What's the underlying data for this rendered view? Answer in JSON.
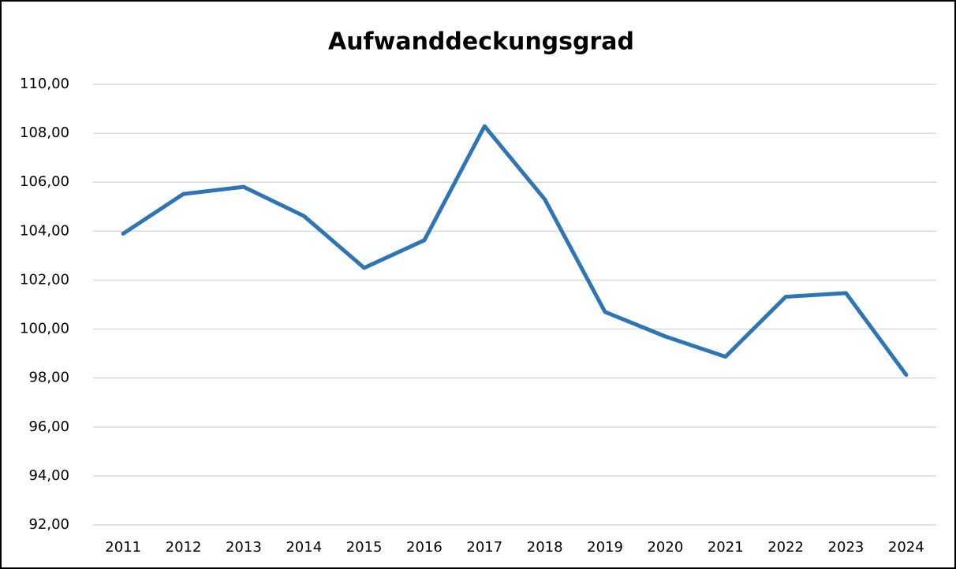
{
  "chart_data": {
    "type": "line",
    "title": "Aufwanddeckungsgrad",
    "categories": [
      "2011",
      "2012",
      "2013",
      "2014",
      "2015",
      "2016",
      "2017",
      "2018",
      "2019",
      "2020",
      "2021",
      "2022",
      "2023",
      "2024"
    ],
    "series": [
      {
        "color": "#2e75b6",
        "values": [
          103.9,
          105.52,
          105.81,
          104.62,
          102.5,
          103.63,
          108.29,
          105.3,
          100.7,
          99.7,
          98.87,
          101.32,
          101.47,
          98.13
        ]
      }
    ],
    "ylim": [
      92,
      110
    ],
    "yticks": [
      {
        "value": 92,
        "label": "92,00"
      },
      {
        "value": 94,
        "label": "94,00"
      },
      {
        "value": 96,
        "label": "96,00"
      },
      {
        "value": 98,
        "label": "98,00"
      },
      {
        "value": 100,
        "label": "100,00"
      },
      {
        "value": 102,
        "label": "102,00"
      },
      {
        "value": 104,
        "label": "104,00"
      },
      {
        "value": 106,
        "label": "106,00"
      },
      {
        "value": 108,
        "label": "108,00"
      },
      {
        "value": 110,
        "label": "110,00"
      }
    ],
    "grid": true
  }
}
